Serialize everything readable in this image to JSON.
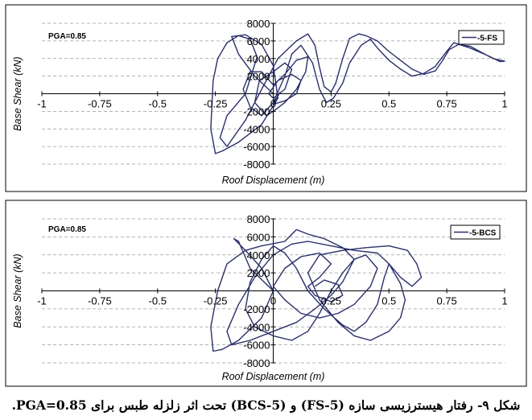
{
  "caption": "شکل ۹- رفتار هیسترزیسی سازه (5-FS) و (5-BCS) تحت اثر زلزله طبس برای PGA=0.85.",
  "colors": {
    "series": "#2a2f6b",
    "grid": "#9a9a9a",
    "frame": "#000000"
  },
  "chart_data": [
    {
      "type": "line",
      "annotation": "PGA=0.85",
      "xlabel": "Roof Displacement (m)",
      "ylabel": "Base Shear (kN)",
      "xlim": [
        -1,
        1
      ],
      "ylim": [
        -8000,
        8000
      ],
      "xticks": [
        "-1",
        "-0.75",
        "-0.5",
        "-0.25",
        "0",
        "0.25",
        "0.5",
        "0.75",
        "1"
      ],
      "yticks": [
        "8000",
        "6000",
        "4000",
        "2000",
        "0",
        "-2000",
        "-4000",
        "-6000",
        "-8000"
      ],
      "grid": "horizontal-dashed",
      "legend": "top-right",
      "series": [
        {
          "name": "5-FS",
          "points": [
            [
              0.0,
              0.0
            ],
            [
              -0.08,
              2000
            ],
            [
              -0.15,
              4500
            ],
            [
              -0.18,
              6500
            ],
            [
              -0.12,
              6700
            ],
            [
              -0.05,
              5600
            ],
            [
              0.0,
              3200
            ],
            [
              0.02,
              -500
            ],
            [
              -0.05,
              -3500
            ],
            [
              -0.15,
              -5500
            ],
            [
              -0.22,
              -6500
            ],
            [
              -0.25,
              -6800
            ],
            [
              -0.27,
              -4000
            ],
            [
              -0.26,
              1500
            ],
            [
              -0.24,
              4000
            ],
            [
              -0.2,
              5800
            ],
            [
              -0.15,
              6600
            ],
            [
              -0.1,
              6200
            ],
            [
              -0.07,
              4200
            ],
            [
              -0.12,
              0
            ],
            [
              -0.2,
              -2500
            ],
            [
              -0.23,
              -5000
            ],
            [
              -0.2,
              -6000
            ],
            [
              -0.12,
              -3000
            ],
            [
              -0.05,
              500
            ],
            [
              0.02,
              4000
            ],
            [
              0.1,
              6000
            ],
            [
              0.15,
              6800
            ],
            [
              0.18,
              5500
            ],
            [
              0.2,
              3000
            ],
            [
              0.22,
              800
            ],
            [
              0.25,
              200
            ],
            [
              0.27,
              1200
            ],
            [
              0.3,
              4000
            ],
            [
              0.33,
              6300
            ],
            [
              0.37,
              6800
            ],
            [
              0.4,
              6600
            ],
            [
              0.45,
              6000
            ],
            [
              0.5,
              4800
            ],
            [
              0.55,
              3800
            ],
            [
              0.6,
              2800
            ],
            [
              0.65,
              2200
            ],
            [
              0.7,
              2600
            ],
            [
              0.73,
              3700
            ],
            [
              0.76,
              5000
            ],
            [
              0.8,
              5600
            ],
            [
              0.85,
              5400
            ],
            [
              0.9,
              4700
            ],
            [
              0.95,
              4000
            ],
            [
              1.0,
              3700
            ],
            [
              0.98,
              3650
            ],
            [
              0.93,
              4300
            ],
            [
              0.85,
              5200
            ],
            [
              0.78,
              5800
            ],
            [
              0.74,
              4500
            ],
            [
              0.7,
              3100
            ],
            [
              0.65,
              2300
            ],
            [
              0.6,
              2000
            ],
            [
              0.55,
              2800
            ],
            [
              0.5,
              3800
            ],
            [
              0.45,
              5200
            ],
            [
              0.42,
              6200
            ],
            [
              0.38,
              5500
            ],
            [
              0.33,
              3500
            ],
            [
              0.3,
              1200
            ],
            [
              0.26,
              -500
            ],
            [
              0.23,
              -1000
            ],
            [
              0.2,
              500
            ],
            [
              0.17,
              3500
            ],
            [
              0.12,
              5500
            ],
            [
              0.08,
              4500
            ],
            [
              0.05,
              2000
            ],
            [
              0.0,
              -1000
            ],
            [
              -0.05,
              -2500
            ],
            [
              -0.1,
              -1500
            ],
            [
              -0.13,
              500
            ],
            [
              -0.1,
              2500
            ],
            [
              -0.05,
              2500
            ],
            [
              0.0,
              1000
            ],
            [
              0.05,
              2200
            ],
            [
              0.1,
              3800
            ],
            [
              0.15,
              4200
            ],
            [
              0.14,
              2500
            ],
            [
              0.1,
              500
            ],
            [
              0.05,
              -1000
            ],
            [
              0.0,
              -2000
            ],
            [
              -0.03,
              -2500
            ],
            [
              -0.08,
              -1000
            ],
            [
              -0.06,
              1500
            ],
            [
              0.0,
              2500
            ],
            [
              0.05,
              3500
            ],
            [
              0.08,
              2800
            ],
            [
              0.05,
              500
            ],
            [
              0.0,
              -500
            ],
            [
              -0.02,
              0
            ],
            [
              0.02,
              1500
            ],
            [
              0.08,
              2200
            ],
            [
              0.12,
              1500
            ],
            [
              0.1,
              0
            ],
            [
              0.05,
              -800
            ],
            [
              0.0,
              -1200
            ],
            [
              0.03,
              200
            ]
          ]
        }
      ]
    },
    {
      "type": "line",
      "annotation": "PGA=0.85",
      "xlabel": "Roof Displacement (m)",
      "ylabel": "Base Shear (kN)",
      "xlim": [
        -1,
        1
      ],
      "ylim": [
        -8000,
        8000
      ],
      "xticks": [
        "-1",
        "-0.75",
        "-0.5",
        "-0.25",
        "0",
        "0.25",
        "0.5",
        "0.75",
        "1"
      ],
      "yticks": [
        "8000",
        "6000",
        "4000",
        "2000",
        "0",
        "-2000",
        "-4000",
        "-6000",
        "-8000"
      ],
      "grid": "horizontal-dashed",
      "legend": "top-right",
      "series": [
        {
          "name": "5-BCS",
          "points": [
            [
              0.0,
              0.0
            ],
            [
              -0.1,
              2500
            ],
            [
              -0.15,
              5500
            ],
            [
              -0.17,
              5800
            ],
            [
              -0.12,
              4500
            ],
            [
              -0.05,
              2500
            ],
            [
              0.0,
              0
            ],
            [
              -0.05,
              -3000
            ],
            [
              -0.15,
              -5500
            ],
            [
              -0.22,
              -6500
            ],
            [
              -0.26,
              -6700
            ],
            [
              -0.27,
              -4000
            ],
            [
              -0.24,
              0
            ],
            [
              -0.2,
              3000
            ],
            [
              -0.12,
              4500
            ],
            [
              -0.05,
              5000
            ],
            [
              0.05,
              5500
            ],
            [
              0.1,
              6800
            ],
            [
              0.15,
              6300
            ],
            [
              0.22,
              5800
            ],
            [
              0.3,
              4800
            ],
            [
              0.35,
              3500
            ],
            [
              0.3,
              1000
            ],
            [
              0.25,
              -500
            ],
            [
              0.18,
              -2000
            ],
            [
              0.1,
              -3500
            ],
            [
              0.0,
              -4500
            ],
            [
              -0.1,
              -5500
            ],
            [
              -0.18,
              -6000
            ],
            [
              -0.2,
              -4500
            ],
            [
              -0.15,
              -1500
            ],
            [
              -0.08,
              1500
            ],
            [
              0.0,
              4000
            ],
            [
              0.08,
              5200
            ],
            [
              0.15,
              5500
            ],
            [
              0.25,
              5000
            ],
            [
              0.35,
              4500
            ],
            [
              0.45,
              4200
            ],
            [
              0.5,
              3000
            ],
            [
              0.55,
              800
            ],
            [
              0.57,
              -1000
            ],
            [
              0.55,
              -3000
            ],
            [
              0.5,
              -4500
            ],
            [
              0.42,
              -5500
            ],
            [
              0.35,
              -5000
            ],
            [
              0.28,
              -3500
            ],
            [
              0.2,
              -1000
            ],
            [
              0.15,
              2000
            ],
            [
              0.2,
              4000
            ],
            [
              0.3,
              4500
            ],
            [
              0.4,
              4800
            ],
            [
              0.5,
              5000
            ],
            [
              0.58,
              4500
            ],
            [
              0.62,
              3000
            ],
            [
              0.64,
              1500
            ],
            [
              0.6,
              500
            ],
            [
              0.55,
              1500
            ],
            [
              0.5,
              3000
            ],
            [
              0.48,
              1500
            ],
            [
              0.45,
              -1500
            ],
            [
              0.4,
              -3500
            ],
            [
              0.35,
              -4500
            ],
            [
              0.3,
              -3800
            ],
            [
              0.22,
              -2000
            ],
            [
              0.15,
              0
            ],
            [
              0.1,
              2500
            ],
            [
              0.05,
              4200
            ],
            [
              0.0,
              5000
            ],
            [
              -0.05,
              3500
            ],
            [
              -0.1,
              1000
            ],
            [
              -0.12,
              -2000
            ],
            [
              -0.08,
              -4000
            ],
            [
              0.0,
              -5000
            ],
            [
              0.08,
              -5500
            ],
            [
              0.15,
              -4500
            ],
            [
              0.2,
              -2500
            ],
            [
              0.25,
              0
            ],
            [
              0.3,
              2000
            ],
            [
              0.35,
              3500
            ],
            [
              0.4,
              4000
            ],
            [
              0.45,
              2500
            ],
            [
              0.42,
              500
            ],
            [
              0.35,
              -1500
            ],
            [
              0.28,
              -2500
            ],
            [
              0.2,
              -3000
            ],
            [
              0.12,
              -2500
            ],
            [
              0.05,
              -1000
            ],
            [
              0.0,
              500
            ],
            [
              0.05,
              2500
            ],
            [
              0.12,
              3800
            ],
            [
              0.2,
              4200
            ],
            [
              0.25,
              3000
            ],
            [
              0.2,
              1500
            ],
            [
              0.15,
              500
            ],
            [
              0.18,
              -500
            ],
            [
              0.25,
              -1200
            ],
            [
              0.3,
              -500
            ],
            [
              0.28,
              700
            ],
            [
              0.22,
              1200
            ],
            [
              0.18,
              500
            ]
          ]
        }
      ]
    }
  ]
}
